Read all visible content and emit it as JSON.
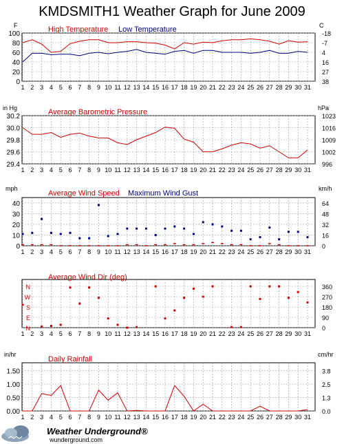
{
  "page": {
    "title": "KMDSMITH1 Weather Graph for June 2009",
    "logo_text": "Weather Underground®",
    "logo_url": "wunderground.com"
  },
  "colors": {
    "red": "#cc0000",
    "blue": "#000080",
    "grid": "#808080"
  },
  "chart_data": [
    {
      "type": "line",
      "unit_left": "F",
      "unit_right": "C",
      "x": [
        1,
        2,
        3,
        4,
        5,
        6,
        7,
        8,
        9,
        10,
        11,
        12,
        13,
        14,
        15,
        16,
        17,
        18,
        19,
        20,
        21,
        22,
        23,
        24,
        25,
        26,
        27,
        28,
        29,
        30,
        31
      ],
      "ylim": [
        0,
        100
      ],
      "yticks": [
        0,
        20,
        40,
        60,
        80,
        100
      ],
      "yticks_right": [
        "38",
        "27",
        "16",
        "4",
        "-7",
        "-18"
      ],
      "grid": true,
      "series": [
        {
          "name": "High Temperature",
          "color": "#cc0000",
          "values": [
            80,
            86,
            77,
            60,
            62,
            78,
            83,
            86,
            86,
            80,
            80,
            82,
            82,
            80,
            79,
            75,
            67,
            80,
            77,
            81,
            80,
            84,
            86,
            86,
            88,
            86,
            83,
            77,
            84,
            81,
            82
          ]
        },
        {
          "name": "Low Temperature",
          "color": "#000080",
          "values": [
            40,
            58,
            58,
            55,
            56,
            56,
            53,
            58,
            60,
            57,
            60,
            62,
            66,
            60,
            58,
            56,
            62,
            64,
            58,
            64,
            64,
            60,
            60,
            60,
            58,
            60,
            64,
            58,
            58,
            62,
            60
          ]
        }
      ]
    },
    {
      "type": "line",
      "unit_left": "in Hg",
      "unit_right": "hPa",
      "x": [
        1,
        2,
        3,
        4,
        5,
        6,
        7,
        8,
        9,
        10,
        11,
        12,
        13,
        14,
        15,
        16,
        17,
        18,
        19,
        20,
        21,
        22,
        23,
        24,
        25,
        26,
        27,
        28,
        29,
        30,
        31
      ],
      "ylim": [
        29.4,
        30.2
      ],
      "yticks": [
        29.4,
        29.6,
        29.8,
        30.0,
        30.2
      ],
      "yticklabels": [
        "29.4",
        "29.6",
        "29.8",
        "30.0",
        "30.2"
      ],
      "yticks_right": [
        "996",
        "1002",
        "1009",
        "1016",
        "1023"
      ],
      "grid": true,
      "series": [
        {
          "name": "Average Barometric Pressure",
          "color": "#cc0000",
          "values": [
            30.0,
            29.89,
            29.89,
            29.92,
            29.84,
            29.89,
            29.91,
            29.86,
            29.83,
            29.83,
            29.75,
            29.72,
            29.8,
            29.86,
            29.92,
            30.01,
            29.99,
            29.81,
            29.76,
            29.6,
            29.6,
            29.65,
            29.71,
            29.75,
            29.73,
            29.66,
            29.7,
            29.6,
            29.5,
            29.5,
            29.63
          ]
        }
      ]
    },
    {
      "type": "scatter",
      "unit_left": "mph",
      "unit_right": "km/h",
      "x": [
        1,
        2,
        3,
        4,
        5,
        6,
        7,
        8,
        9,
        10,
        11,
        12,
        13,
        14,
        15,
        16,
        17,
        18,
        19,
        20,
        21,
        22,
        23,
        24,
        25,
        26,
        27,
        28,
        29,
        30,
        31
      ],
      "ylim": [
        0,
        45
      ],
      "yticks": [
        0,
        10,
        20,
        30,
        40
      ],
      "yticks_right": [
        "0",
        "16",
        "32",
        "48",
        "64"
      ],
      "grid": true,
      "series": [
        {
          "name": "Average Wind Speed",
          "color": "#cc0000",
          "marker": "line",
          "values": [
            1,
            1,
            1,
            1,
            0,
            0,
            0,
            0,
            0,
            0,
            0,
            1,
            1,
            0,
            1,
            1,
            2,
            1,
            1,
            2,
            3,
            2,
            1,
            1,
            0,
            0,
            2,
            1,
            0,
            0,
            0
          ]
        },
        {
          "name": "Maximum Wind Gust",
          "color": "#000080",
          "marker": "square",
          "values": [
            11,
            12,
            25,
            12,
            11,
            12,
            7,
            7,
            38,
            9,
            11,
            16,
            16,
            16,
            10,
            16,
            18,
            16,
            11,
            22,
            20,
            18,
            14,
            14,
            6,
            8,
            17,
            6,
            13,
            13,
            8
          ]
        }
      ]
    },
    {
      "type": "scatter",
      "x": [
        1,
        2,
        3,
        4,
        5,
        6,
        7,
        8,
        9,
        10,
        11,
        12,
        13,
        14,
        15,
        16,
        17,
        18,
        19,
        20,
        21,
        22,
        23,
        24,
        25,
        26,
        27,
        28,
        29,
        30,
        31
      ],
      "ylim": [
        0,
        420
      ],
      "yticks": [
        0,
        90,
        180,
        270,
        360
      ],
      "yticks_right": [
        "0",
        "90",
        "180",
        "270",
        "360"
      ],
      "yticks_left": [
        "N",
        "E",
        "S",
        "W",
        "N"
      ],
      "grid": true,
      "series": [
        {
          "name": "Average Wind Dir (deg)",
          "color": "#cc0000",
          "marker": "square",
          "values": [
            200,
            null,
            10,
            15,
            25,
            350,
            210,
            350,
            260,
            80,
            25,
            0,
            5,
            null,
            360,
            80,
            150,
            260,
            340,
            270,
            360,
            null,
            5,
            5,
            360,
            250,
            360,
            360,
            260,
            310,
            220
          ]
        }
      ]
    },
    {
      "type": "line",
      "unit_left": "in/hr",
      "unit_right": "cm/hr",
      "x": [
        1,
        2,
        3,
        4,
        5,
        6,
        7,
        8,
        9,
        10,
        11,
        12,
        13,
        14,
        15,
        16,
        17,
        18,
        19,
        20,
        21,
        22,
        23,
        24,
        25,
        26,
        27,
        28,
        29,
        30,
        31
      ],
      "ylim": [
        0,
        1.8
      ],
      "yticks": [
        0,
        0.5,
        1.0,
        1.5
      ],
      "yticklabels": [
        "0.00",
        "0.50",
        "1.00",
        "1.50"
      ],
      "yticks_right": [
        "0.0",
        "1.3",
        "2.5",
        "3.8"
      ],
      "grid": true,
      "series": [
        {
          "name": "Daily Rainfall",
          "color": "#cc0000",
          "values": [
            0,
            0,
            0.65,
            0.58,
            0.95,
            0,
            0,
            0,
            0.78,
            0.4,
            0.68,
            0,
            0.02,
            0,
            0,
            0,
            0.95,
            0.55,
            0,
            0.25,
            0,
            0,
            0,
            0,
            0,
            0.18,
            0,
            0,
            0,
            0,
            0.05
          ]
        }
      ]
    }
  ]
}
